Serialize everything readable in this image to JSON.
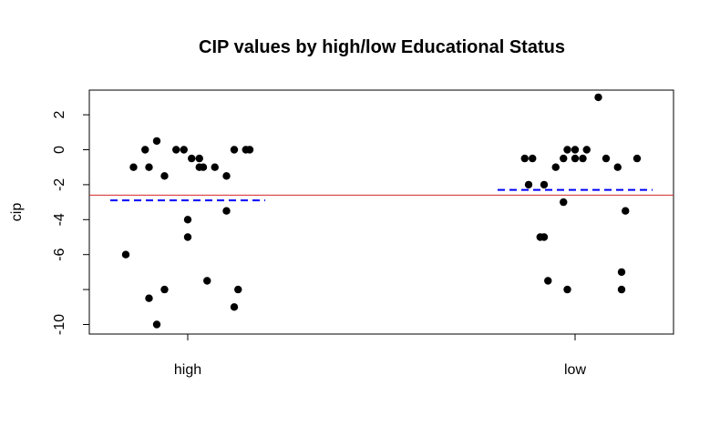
{
  "chart_data": {
    "type": "scatter",
    "title": "CIP values by high/low Educational Status",
    "xlabel": "",
    "ylabel": "cip",
    "categories": [
      "high",
      "low"
    ],
    "y_ticks": [
      2,
      0,
      -2,
      -4,
      -6,
      -8,
      -10
    ],
    "y_tick_labels": [
      "2",
      "0",
      "-2",
      "-4",
      "-6",
      "",
      "-10"
    ],
    "ylim": [
      -10.5,
      3.5
    ],
    "grid": false,
    "overall_mean": -2.6,
    "group_means": [
      -2.9,
      -2.3
    ],
    "colors": {
      "points": "#000000",
      "overall_mean": "#d62728",
      "group_mean": "#0000ff"
    },
    "points": [
      {
        "group": "high",
        "x": 0.86,
        "y": -1
      },
      {
        "group": "high",
        "x": 0.9,
        "y": -1
      },
      {
        "group": "high",
        "x": 0.89,
        "y": 0
      },
      {
        "group": "high",
        "x": 0.92,
        "y": 0.5
      },
      {
        "group": "high",
        "x": 0.94,
        "y": -1.5
      },
      {
        "group": "high",
        "x": 0.97,
        "y": 0
      },
      {
        "group": "high",
        "x": 0.99,
        "y": 0
      },
      {
        "group": "high",
        "x": 1.01,
        "y": -0.5
      },
      {
        "group": "high",
        "x": 1.03,
        "y": -0.5
      },
      {
        "group": "high",
        "x": 1.03,
        "y": -1
      },
      {
        "group": "high",
        "x": 1.04,
        "y": -1
      },
      {
        "group": "high",
        "x": 1.07,
        "y": -1
      },
      {
        "group": "high",
        "x": 1.1,
        "y": -1.5
      },
      {
        "group": "high",
        "x": 1.12,
        "y": 0
      },
      {
        "group": "high",
        "x": 1.15,
        "y": 0
      },
      {
        "group": "high",
        "x": 1.16,
        "y": 0
      },
      {
        "group": "high",
        "x": 1.0,
        "y": -4
      },
      {
        "group": "high",
        "x": 1.0,
        "y": -5
      },
      {
        "group": "high",
        "x": 1.1,
        "y": -3.5
      },
      {
        "group": "high",
        "x": 0.84,
        "y": -6
      },
      {
        "group": "high",
        "x": 0.94,
        "y": -8
      },
      {
        "group": "high",
        "x": 0.9,
        "y": -8.5
      },
      {
        "group": "high",
        "x": 1.05,
        "y": -7.5
      },
      {
        "group": "high",
        "x": 1.13,
        "y": -8
      },
      {
        "group": "high",
        "x": 1.12,
        "y": -9
      },
      {
        "group": "high",
        "x": 0.92,
        "y": -10
      },
      {
        "group": "low",
        "x": 1.87,
        "y": -0.5
      },
      {
        "group": "low",
        "x": 1.89,
        "y": -0.5
      },
      {
        "group": "low",
        "x": 1.95,
        "y": -1
      },
      {
        "group": "low",
        "x": 1.97,
        "y": -0.5
      },
      {
        "group": "low",
        "x": 1.98,
        "y": 0
      },
      {
        "group": "low",
        "x": 2.0,
        "y": -0.5
      },
      {
        "group": "low",
        "x": 2.0,
        "y": 0
      },
      {
        "group": "low",
        "x": 2.02,
        "y": -0.5
      },
      {
        "group": "low",
        "x": 2.03,
        "y": 0
      },
      {
        "group": "low",
        "x": 2.08,
        "y": -0.5
      },
      {
        "group": "low",
        "x": 2.06,
        "y": 3
      },
      {
        "group": "low",
        "x": 2.11,
        "y": -1
      },
      {
        "group": "low",
        "x": 2.16,
        "y": -0.5
      },
      {
        "group": "low",
        "x": 1.88,
        "y": -2
      },
      {
        "group": "low",
        "x": 1.92,
        "y": -2
      },
      {
        "group": "low",
        "x": 1.97,
        "y": -3
      },
      {
        "group": "low",
        "x": 1.91,
        "y": -5
      },
      {
        "group": "low",
        "x": 1.92,
        "y": -5
      },
      {
        "group": "low",
        "x": 2.13,
        "y": -3.5
      },
      {
        "group": "low",
        "x": 1.93,
        "y": -7.5
      },
      {
        "group": "low",
        "x": 1.98,
        "y": -8
      },
      {
        "group": "low",
        "x": 2.12,
        "y": -7
      },
      {
        "group": "low",
        "x": 2.12,
        "y": -8
      }
    ]
  }
}
